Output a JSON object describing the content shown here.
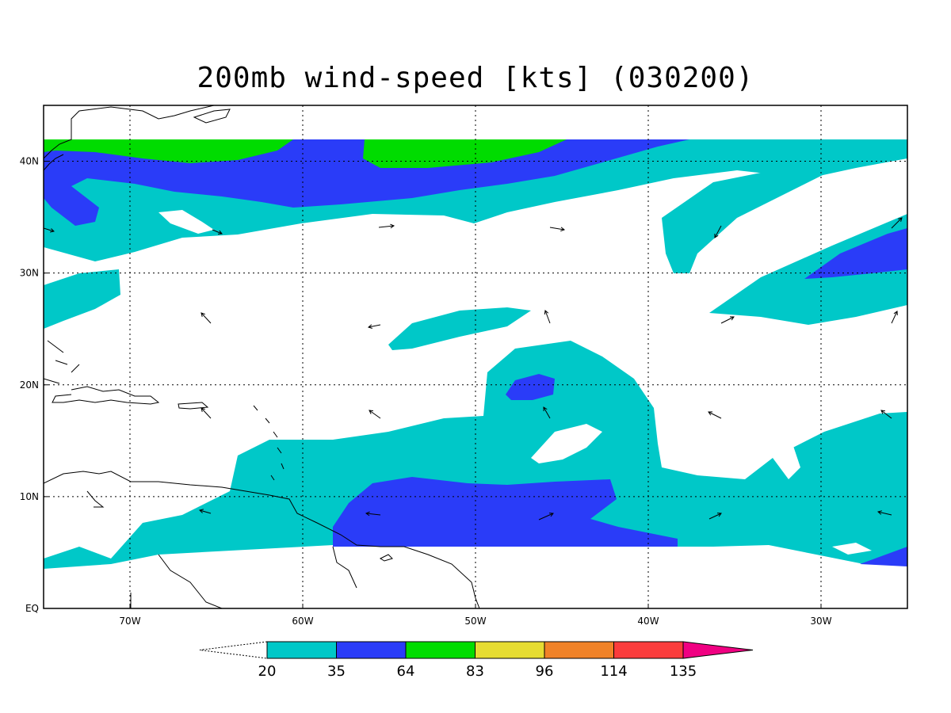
{
  "title": "200mb wind-speed [kts] (030200)",
  "colors": {
    "c20": "#00c8c8",
    "c35": "#2a3cf8",
    "c64": "#00dc00",
    "c83": "#e6dc32",
    "c96": "#f08228",
    "c114": "#fa3c3c",
    "c135": "#f00082",
    "land": "#000000",
    "grid": "#000000"
  },
  "axes": {
    "lon_range": [
      -75,
      -25
    ],
    "lat_range": [
      0,
      45
    ],
    "lon_ticks": [
      {
        "value": -70,
        "label": "70W"
      },
      {
        "value": -60,
        "label": "60W"
      },
      {
        "value": -50,
        "label": "50W"
      },
      {
        "value": -40,
        "label": "40W"
      },
      {
        "value": -30,
        "label": "30W"
      }
    ],
    "lat_ticks": [
      {
        "value": 0,
        "label": "EQ"
      },
      {
        "value": 10,
        "label": "10N"
      },
      {
        "value": 20,
        "label": "20N"
      },
      {
        "value": 30,
        "label": "30N"
      },
      {
        "value": 40,
        "label": "40N"
      }
    ],
    "grid": true
  },
  "colorbar": {
    "levels": [
      "20",
      "35",
      "64",
      "83",
      "96",
      "114",
      "135"
    ],
    "colors": [
      "#00c8c8",
      "#2a3cf8",
      "#00dc00",
      "#e6dc32",
      "#f08228",
      "#fa3c3c",
      "#f00082"
    ]
  }
}
